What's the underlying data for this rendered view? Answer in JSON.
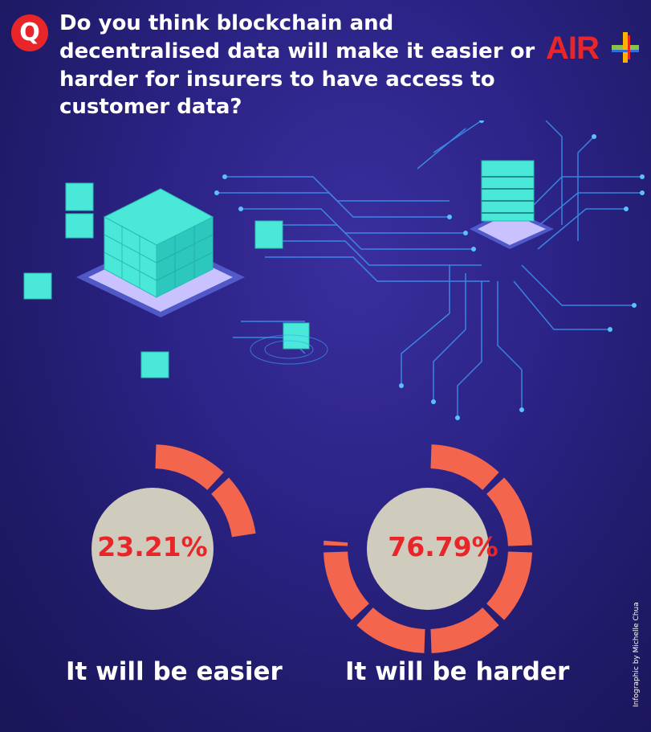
{
  "header": {
    "q_letter": "Q",
    "question": "Do you think blockchain and decentralised data will make it easier or harder for insurers to have access to customer data?",
    "logo_text": "AIR",
    "logo_icon": "plus-icon"
  },
  "chart_data": {
    "type": "pie",
    "title": "",
    "categories": [
      "It will be easier",
      "It will be harder"
    ],
    "values": [
      23.21,
      76.79
    ],
    "value_labels": [
      "23.21%",
      "76.79%"
    ],
    "colors": {
      "arc": "#f4654e",
      "center": "#cfcbbd",
      "value_text": "#e8262a",
      "label_text": "#ffffff"
    }
  },
  "credit": "Infographic by Michelle Chua"
}
